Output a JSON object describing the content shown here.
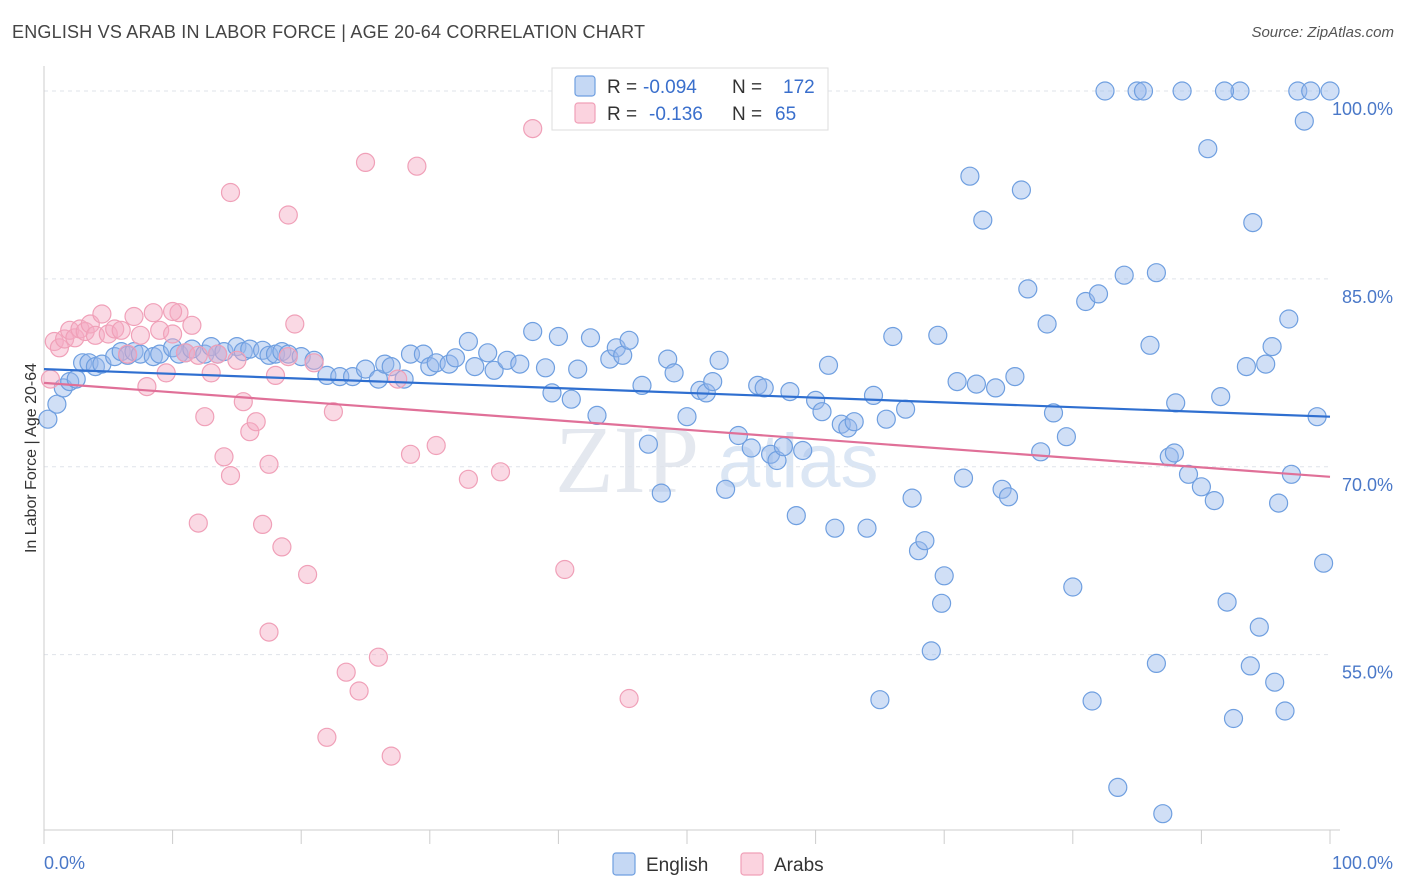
{
  "title": "ENGLISH VS ARAB IN LABOR FORCE | AGE 20-64 CORRELATION CHART",
  "source": "Source: ZipAtlas.com",
  "watermark": {
    "zip": "ZIP",
    "atlas": "atlas"
  },
  "stats": {
    "english": {
      "r_label": "R =",
      "r_value": "-0.094",
      "n_label": "N =",
      "n_value": "172"
    },
    "arabs": {
      "r_label": "R =",
      "r_value": "-0.136",
      "n_label": "N =",
      "n_value": "65"
    }
  },
  "colors": {
    "english": "#6f9fe0",
    "english_line": "#2f6fd0",
    "arabs": "#f0a0b8",
    "arabs_line": "#e07098",
    "axis_text": "#4a78c8"
  },
  "chart_data": {
    "type": "scatter",
    "ylabel": "In Labor Force | Age 20-64",
    "xlabel": "",
    "x_tick_labels": [
      "0.0%",
      "100.0%"
    ],
    "y_tick_labels": [
      "100.0%",
      "85.0%",
      "70.0%",
      "55.0%"
    ],
    "y_ticks": [
      100,
      85,
      70,
      55
    ],
    "xlim": [
      0,
      100
    ],
    "ylim": [
      41,
      102
    ],
    "grid": true,
    "legend": {
      "position": "bottom-center",
      "entries": [
        "English",
        "Arabs"
      ]
    },
    "series": [
      {
        "name": "English",
        "trend": {
          "x": [
            0,
            100
          ],
          "y": [
            77.8,
            74.0
          ]
        },
        "points": [
          [
            0.3,
            73.8
          ],
          [
            1.0,
            75.0
          ],
          [
            1.5,
            76.3
          ],
          [
            2.0,
            76.8
          ],
          [
            2.5,
            77.0
          ],
          [
            3.0,
            78.3
          ],
          [
            3.5,
            78.3
          ],
          [
            4.0,
            78.0
          ],
          [
            4.5,
            78.2
          ],
          [
            5.5,
            78.8
          ],
          [
            6.0,
            79.2
          ],
          [
            6.5,
            78.9
          ],
          [
            7.0,
            79.2
          ],
          [
            7.5,
            79.0
          ],
          [
            8.5,
            78.8
          ],
          [
            9.0,
            79.0
          ],
          [
            10.0,
            79.5
          ],
          [
            10.5,
            79.0
          ],
          [
            11.0,
            79.1
          ],
          [
            11.5,
            79.4
          ],
          [
            12.5,
            79.0
          ],
          [
            13.0,
            79.6
          ],
          [
            13.5,
            79.0
          ],
          [
            14.0,
            79.2
          ],
          [
            15.0,
            79.6
          ],
          [
            15.5,
            79.2
          ],
          [
            16.0,
            79.4
          ],
          [
            17.0,
            79.3
          ],
          [
            17.5,
            78.9
          ],
          [
            18.0,
            79.0
          ],
          [
            18.5,
            79.2
          ],
          [
            19.0,
            79.0
          ],
          [
            20.0,
            78.8
          ],
          [
            21.0,
            78.5
          ],
          [
            22.0,
            77.3
          ],
          [
            23.0,
            77.2
          ],
          [
            24.0,
            77.2
          ],
          [
            25.0,
            77.8
          ],
          [
            26.0,
            77.0
          ],
          [
            26.5,
            78.2
          ],
          [
            27.0,
            78.0
          ],
          [
            28.0,
            77.0
          ],
          [
            28.5,
            79.0
          ],
          [
            29.5,
            79.0
          ],
          [
            30.0,
            78.0
          ],
          [
            30.5,
            78.3
          ],
          [
            31.5,
            78.2
          ],
          [
            32.0,
            78.7
          ],
          [
            33.0,
            80.0
          ],
          [
            33.5,
            78.0
          ],
          [
            34.5,
            79.1
          ],
          [
            35.0,
            77.7
          ],
          [
            36.0,
            78.5
          ],
          [
            37.0,
            78.2
          ],
          [
            38.0,
            80.8
          ],
          [
            39.0,
            77.9
          ],
          [
            39.5,
            75.9
          ],
          [
            40.0,
            80.4
          ],
          [
            41.0,
            75.4
          ],
          [
            41.5,
            77.8
          ],
          [
            42.5,
            80.3
          ],
          [
            43.0,
            74.1
          ],
          [
            44.0,
            78.6
          ],
          [
            44.5,
            79.5
          ],
          [
            45.0,
            78.9
          ],
          [
            45.5,
            80.1
          ],
          [
            46.5,
            76.5
          ],
          [
            47.0,
            71.8
          ],
          [
            48.0,
            67.9
          ],
          [
            48.5,
            78.6
          ],
          [
            49.0,
            77.5
          ],
          [
            50.0,
            74.0
          ],
          [
            51.0,
            76.1
          ],
          [
            51.5,
            75.9
          ],
          [
            52.0,
            76.8
          ],
          [
            52.5,
            78.5
          ],
          [
            53.0,
            68.2
          ],
          [
            54.0,
            72.5
          ],
          [
            55.0,
            71.5
          ],
          [
            55.5,
            76.5
          ],
          [
            56.0,
            76.3
          ],
          [
            56.5,
            71.0
          ],
          [
            57.0,
            70.5
          ],
          [
            57.5,
            71.6
          ],
          [
            58.0,
            76.0
          ],
          [
            58.5,
            66.1
          ],
          [
            59.0,
            71.3
          ],
          [
            60.0,
            75.3
          ],
          [
            60.5,
            74.4
          ],
          [
            61.0,
            78.1
          ],
          [
            61.5,
            65.1
          ],
          [
            62.0,
            73.4
          ],
          [
            62.5,
            73.1
          ],
          [
            63.0,
            73.6
          ],
          [
            64.0,
            65.1
          ],
          [
            64.5,
            75.7
          ],
          [
            65.5,
            73.8
          ],
          [
            66.0,
            80.4
          ],
          [
            67.0,
            74.6
          ],
          [
            67.5,
            67.5
          ],
          [
            68.0,
            63.3
          ],
          [
            68.5,
            64.1
          ],
          [
            69.0,
            55.3
          ],
          [
            69.5,
            80.5
          ],
          [
            70.0,
            61.3
          ],
          [
            71.0,
            76.8
          ],
          [
            71.5,
            69.1
          ],
          [
            72.0,
            93.2
          ],
          [
            72.5,
            76.6
          ],
          [
            73.0,
            89.7
          ],
          [
            74.0,
            76.3
          ],
          [
            74.5,
            68.2
          ],
          [
            75.0,
            67.6
          ],
          [
            75.5,
            77.2
          ],
          [
            76.0,
            92.1
          ],
          [
            76.5,
            84.2
          ],
          [
            77.5,
            71.2
          ],
          [
            78.0,
            81.4
          ],
          [
            78.5,
            74.3
          ],
          [
            79.5,
            72.4
          ],
          [
            80.0,
            60.4
          ],
          [
            81.0,
            83.2
          ],
          [
            81.5,
            51.3
          ],
          [
            82.0,
            83.8
          ],
          [
            82.5,
            100.0
          ],
          [
            83.5,
            44.4
          ],
          [
            84.0,
            85.3
          ],
          [
            85.0,
            100.0
          ],
          [
            85.5,
            100.0
          ],
          [
            86.0,
            79.7
          ],
          [
            86.5,
            85.5
          ],
          [
            87.0,
            42.3
          ],
          [
            87.5,
            70.8
          ],
          [
            88.0,
            75.1
          ],
          [
            88.5,
            100.0
          ],
          [
            90.0,
            68.4
          ],
          [
            90.5,
            95.4
          ],
          [
            91.0,
            67.3
          ],
          [
            91.5,
            75.6
          ],
          [
            92.0,
            59.2
          ],
          [
            93.0,
            100.0
          ],
          [
            93.5,
            78.0
          ],
          [
            94.0,
            89.5
          ],
          [
            94.5,
            57.2
          ],
          [
            95.0,
            78.2
          ],
          [
            95.5,
            79.6
          ],
          [
            96.0,
            67.1
          ],
          [
            96.5,
            50.5
          ],
          [
            97.0,
            69.4
          ],
          [
            97.5,
            100.0
          ],
          [
            98.0,
            97.6
          ],
          [
            98.5,
            100.0
          ],
          [
            99.0,
            74.0
          ],
          [
            99.5,
            62.3
          ],
          [
            100.0,
            100.0
          ],
          [
            96.8,
            81.8
          ],
          [
            65.0,
            51.4
          ],
          [
            69.8,
            59.1
          ],
          [
            86.5,
            54.3
          ],
          [
            92.5,
            49.9
          ],
          [
            93.8,
            54.1
          ],
          [
            95.7,
            52.8
          ],
          [
            91.8,
            100.0
          ],
          [
            87.9,
            71.1
          ],
          [
            89.0,
            69.4
          ]
        ]
      },
      {
        "name": "Arabs",
        "trend": {
          "x": [
            0,
            100
          ],
          "y": [
            76.7,
            69.2
          ]
        },
        "points": [
          [
            0.8,
            80.0
          ],
          [
            1.2,
            79.5
          ],
          [
            1.6,
            80.2
          ],
          [
            2.0,
            80.9
          ],
          [
            2.4,
            80.3
          ],
          [
            2.8,
            81.0
          ],
          [
            3.2,
            80.8
          ],
          [
            3.6,
            81.4
          ],
          [
            4.0,
            80.5
          ],
          [
            4.5,
            82.2
          ],
          [
            5.0,
            80.6
          ],
          [
            5.5,
            81.0
          ],
          [
            6.0,
            80.9
          ],
          [
            6.5,
            79.0
          ],
          [
            7.0,
            82.0
          ],
          [
            7.5,
            80.5
          ],
          [
            8.0,
            76.4
          ],
          [
            8.5,
            82.3
          ],
          [
            9.0,
            80.9
          ],
          [
            9.5,
            77.5
          ],
          [
            10.0,
            80.6
          ],
          [
            10.5,
            82.3
          ],
          [
            11.0,
            79.1
          ],
          [
            11.5,
            81.3
          ],
          [
            12.0,
            78.9
          ],
          [
            12.5,
            74.0
          ],
          [
            13.0,
            77.5
          ],
          [
            13.5,
            79.0
          ],
          [
            14.0,
            70.8
          ],
          [
            14.5,
            69.3
          ],
          [
            15.0,
            78.5
          ],
          [
            15.5,
            75.2
          ],
          [
            16.0,
            72.8
          ],
          [
            16.5,
            73.6
          ],
          [
            17.0,
            65.4
          ],
          [
            17.5,
            70.2
          ],
          [
            18.0,
            77.3
          ],
          [
            18.5,
            63.6
          ],
          [
            19.0,
            78.8
          ],
          [
            19.5,
            81.4
          ],
          [
            20.5,
            61.4
          ],
          [
            21.0,
            78.3
          ],
          [
            22.0,
            48.4
          ],
          [
            22.5,
            74.4
          ],
          [
            23.5,
            53.6
          ],
          [
            24.5,
            52.1
          ],
          [
            25.0,
            94.3
          ],
          [
            26.0,
            54.8
          ],
          [
            27.0,
            46.9
          ],
          [
            27.5,
            77.0
          ],
          [
            28.5,
            71.0
          ],
          [
            29.0,
            94.0
          ],
          [
            30.5,
            71.7
          ],
          [
            33.0,
            69.0
          ],
          [
            35.5,
            69.6
          ],
          [
            38.0,
            97.0
          ],
          [
            40.5,
            61.8
          ],
          [
            45.5,
            51.5
          ],
          [
            50.0,
            100.0
          ],
          [
            14.5,
            91.9
          ],
          [
            19.0,
            90.1
          ],
          [
            12.0,
            65.5
          ],
          [
            17.5,
            56.8
          ],
          [
            10.0,
            82.4
          ],
          [
            0.5,
            77.0
          ]
        ]
      }
    ]
  }
}
